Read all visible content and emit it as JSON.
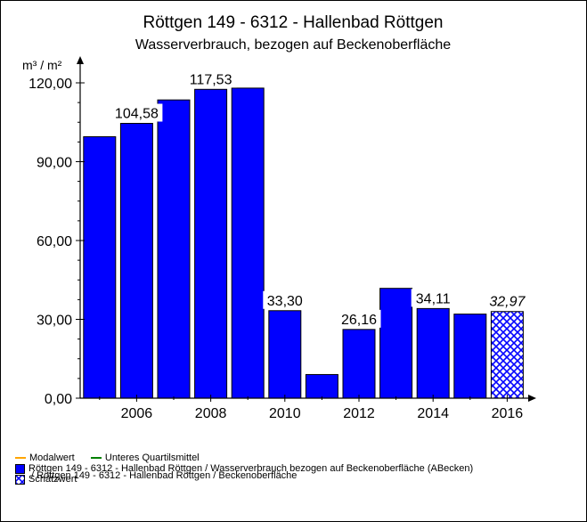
{
  "chart_data": {
    "type": "bar",
    "title": "Röttgen 149 - 6312 - Hallenbad Röttgen",
    "subtitle": "Wasserverbrauch, bezogen auf Beckenoberfläche",
    "ylabel": "m³ / m²",
    "xlabel": "",
    "ylim": [
      0,
      120
    ],
    "yticks": [
      "0,00",
      "30,00",
      "60,00",
      "90,00",
      "120,00"
    ],
    "xticks": [
      "2006",
      "2008",
      "2010",
      "2012",
      "2014",
      "2016"
    ],
    "x": [
      2005,
      2006,
      2007,
      2008,
      2009,
      2010,
      2011,
      2012,
      2013,
      2014,
      2015,
      2016
    ],
    "series": [
      {
        "name": "Röttgen 149 - 6312 - Hallenbad Röttgen / Wasserverbrauch bezogen auf Beckenoberfläche (ABecken)",
        "values": [
          99.5,
          104.58,
          113.5,
          117.53,
          118.0,
          33.3,
          9.0,
          26.16,
          41.8,
          34.11,
          32.0,
          null
        ],
        "color": "#0000ff"
      },
      {
        "name": "Schätzwert",
        "values": [
          null,
          null,
          null,
          null,
          null,
          null,
          null,
          null,
          null,
          null,
          null,
          32.97
        ],
        "color": "#0000ff",
        "pattern": "crosshatch"
      }
    ],
    "data_labels": [
      {
        "x": 2006,
        "text": "104,58"
      },
      {
        "x": 2008,
        "text": "117,53"
      },
      {
        "x": 2010,
        "text": "33,30"
      },
      {
        "x": 2012,
        "text": "26,16"
      },
      {
        "x": 2014,
        "text": "34,11"
      },
      {
        "x": 2016,
        "text": "32,97",
        "italic": true
      }
    ],
    "legend": {
      "placement": "bottom-left",
      "line_items": [
        {
          "label": "Modalwert",
          "color": "#ffa500"
        },
        {
          "label": "Unteres Quartilsmittel",
          "color": "#008000"
        }
      ],
      "box_items": [
        {
          "label": "Röttgen 149 - 6312 - Hallenbad Röttgen / Wasserverbrauch bezogen auf Beckenoberfläche (ABecken)",
          "color": "#0000ff"
        },
        {
          "label": "Schätzwert",
          "color": "#0000ff",
          "pattern": "crosshatch"
        },
        {
          "label": "/ Röttgen 149 - 6312 - Hallenbad Röttgen / Beckenoberfläche"
        }
      ]
    }
  }
}
